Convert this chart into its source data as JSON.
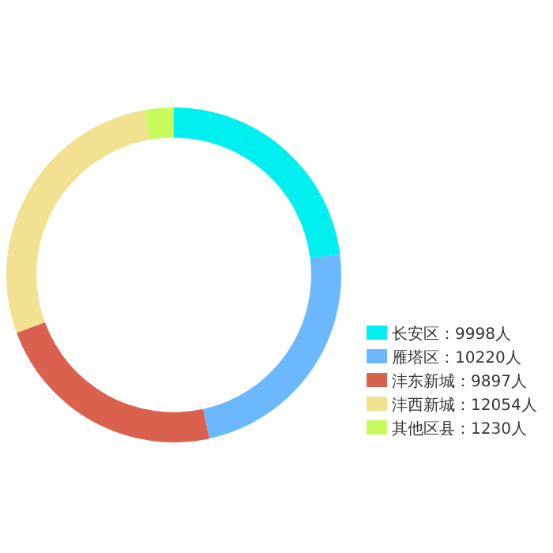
{
  "chart_data": {
    "type": "donut",
    "categories": [
      "长安区：9998人",
      "雁塔区：10220人",
      "沣东新城：9897人",
      "沣西新城：12054人",
      "其他区县：1230人"
    ],
    "values": [
      9998,
      10220,
      9897,
      12054,
      1230
    ],
    "colors": [
      "#00f0f0",
      "#6cb8ff",
      "#d9614d",
      "#f2e190",
      "#c8fb5b"
    ],
    "legend": "right"
  }
}
